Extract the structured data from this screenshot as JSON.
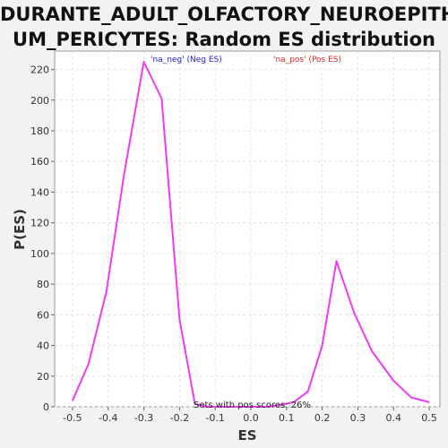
{
  "title_line1": "DURANTE_ADULT_OLFACTORY_NEUROEPITHELI",
  "title_line2": "UM_PERICYTES: Random ES distribution",
  "legend": {
    "neg": "'na_neg' (Neg ES)",
    "pos": "'na_pos' (Pos ES)"
  },
  "annotation": "Sets with pos scores: 26%",
  "colors": {
    "line": "#ee3bf2",
    "neg_legend": "#2020dd",
    "pos_legend": "#dd2020",
    "plot_bg": "#ffffff",
    "grid": "#e4e4e4"
  },
  "chart_data": {
    "type": "line",
    "xlabel": "ES",
    "ylabel": "P(ES)",
    "xlim": [
      -0.55,
      0.53
    ],
    "ylim": [
      0,
      232
    ],
    "xticks": [
      -0.5,
      -0.4,
      -0.3,
      -0.2,
      -0.1,
      0.0,
      0.1,
      0.2,
      0.3,
      0.4,
      0.5
    ],
    "xtick_labels": [
      "-0.5",
      "-0.4",
      "-0.3",
      "-0.2",
      "-0.1",
      "0.0",
      "0.1",
      "0.2",
      "0.3",
      "0.4",
      "0.5"
    ],
    "yticks": [
      0,
      20,
      40,
      60,
      80,
      100,
      120,
      140,
      160,
      180,
      200,
      220
    ],
    "ytick_labels": [
      "0",
      "20",
      "40",
      "60",
      "80",
      "100",
      "120",
      "140",
      "160",
      "180",
      "200",
      "220"
    ],
    "grid": true,
    "series": [
      {
        "x": [
          -0.5,
          -0.455,
          -0.405,
          -0.355,
          -0.3,
          -0.25,
          -0.2,
          -0.157,
          -0.12,
          -0.08,
          -0.04,
          0.0,
          0.04,
          0.08,
          0.12,
          0.16,
          0.2,
          0.24,
          0.29,
          0.34,
          0.4,
          0.45,
          0.5
        ],
        "values": [
          4,
          28,
          75,
          152,
          225,
          201,
          57,
          2,
          0,
          0,
          0,
          0,
          0,
          1,
          3,
          10,
          40,
          95,
          61,
          36,
          17,
          6,
          3
        ]
      }
    ]
  }
}
